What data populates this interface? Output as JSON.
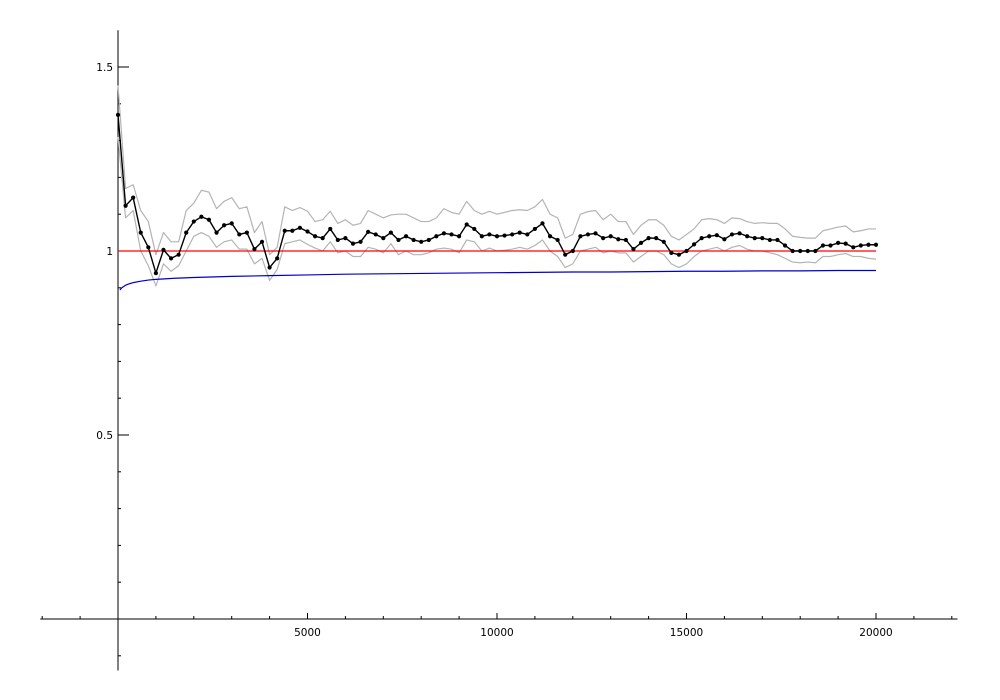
{
  "chart_data": {
    "type": "line",
    "title": "",
    "xlabel": "",
    "ylabel": "",
    "xlim": [
      -2050,
      22150
    ],
    "ylim": [
      -0.14,
      1.6
    ],
    "grid": false,
    "legend": "none",
    "x_ticks": [
      {
        "value": 5000,
        "label": "5000"
      },
      {
        "value": 10000,
        "label": "10000"
      },
      {
        "value": 15000,
        "label": "15000"
      },
      {
        "value": 20000,
        "label": "20000"
      }
    ],
    "x_minor_ticks": [
      -2000,
      -1000,
      1000,
      2000,
      3000,
      4000,
      6000,
      7000,
      8000,
      9000,
      11000,
      12000,
      13000,
      14000,
      16000,
      17000,
      18000,
      19000,
      21000,
      22000
    ],
    "y_ticks": [
      {
        "value": 0.5,
        "label": "0.5"
      },
      {
        "value": 1,
        "label": "1"
      },
      {
        "value": 1.5,
        "label": "1.5"
      }
    ],
    "y_minor_ticks": [
      -0.1,
      0.1,
      0.2,
      0.3,
      0.4,
      0.6,
      0.7,
      0.8,
      0.9,
      1.1,
      1.2,
      1.3,
      1.4
    ],
    "series": [
      {
        "role": "mean",
        "color": "#000000",
        "markers": true,
        "x": [
          0,
          200,
          400,
          600,
          800,
          1000,
          1200,
          1400,
          1600,
          1800,
          2000,
          2200,
          2400,
          2600,
          2800,
          3000,
          3200,
          3400,
          3600,
          3800,
          4000,
          4200,
          4400,
          4600,
          4800,
          5000,
          5200,
          5400,
          5600,
          5800,
          6000,
          6200,
          6400,
          6600,
          6800,
          7000,
          7200,
          7400,
          7600,
          7800,
          8000,
          8200,
          8400,
          8600,
          8800,
          9000,
          9200,
          9400,
          9600,
          9800,
          10000,
          10200,
          10400,
          10600,
          10800,
          11000,
          11200,
          11400,
          11600,
          11800,
          12000,
          12200,
          12400,
          12600,
          12800,
          13000,
          13200,
          13400,
          13600,
          13800,
          14000,
          14200,
          14400,
          14600,
          14800,
          15000,
          15200,
          15400,
          15600,
          15800,
          16000,
          16200,
          16400,
          16600,
          16800,
          17000,
          17200,
          17400,
          17600,
          17800,
          18000,
          18200,
          18400,
          18600,
          18800,
          19000,
          19200,
          19400,
          19600,
          19800,
          20000
        ],
        "y": [
          1.37,
          1.123,
          1.145,
          1.05,
          1.01,
          0.94,
          1.003,
          0.98,
          0.99,
          1.05,
          1.08,
          1.093,
          1.085,
          1.05,
          1.07,
          1.075,
          1.045,
          1.05,
          1.005,
          1.025,
          0.955,
          0.98,
          1.055,
          1.055,
          1.063,
          1.053,
          1.04,
          1.035,
          1.06,
          1.03,
          1.035,
          1.02,
          1.025,
          1.052,
          1.045,
          1.035,
          1.05,
          1.03,
          1.04,
          1.03,
          1.025,
          1.03,
          1.04,
          1.048,
          1.045,
          1.04,
          1.072,
          1.06,
          1.04,
          1.045,
          1.04,
          1.042,
          1.045,
          1.05,
          1.045,
          1.06,
          1.075,
          1.04,
          1.03,
          0.99,
          1.0,
          1.04,
          1.045,
          1.048,
          1.035,
          1.04,
          1.032,
          1.03,
          1.005,
          1.022,
          1.035,
          1.035,
          1.025,
          0.995,
          0.99,
          1.0,
          1.018,
          1.035,
          1.04,
          1.043,
          1.032,
          1.045,
          1.048,
          1.04,
          1.035,
          1.035,
          1.03,
          1.03,
          1.015,
          1.0,
          1.0,
          1.0,
          1.0,
          1.015,
          1.015,
          1.022,
          1.02,
          1.01,
          1.015,
          1.017,
          1.017
        ]
      },
      {
        "role": "upper-band",
        "color": "#b4b4b4",
        "markers": false,
        "x": [
          0,
          200,
          400,
          600,
          800,
          1000,
          1200,
          1400,
          1600,
          1800,
          2000,
          2200,
          2400,
          2600,
          2800,
          3000,
          3200,
          3400,
          3600,
          3800,
          4000,
          4200,
          4400,
          4600,
          4800,
          5000,
          5200,
          5400,
          5600,
          5800,
          6000,
          6200,
          6400,
          6600,
          6800,
          7000,
          7200,
          7400,
          7600,
          7800,
          8000,
          8200,
          8400,
          8600,
          8800,
          9000,
          9200,
          9400,
          9600,
          9800,
          10000,
          10200,
          10400,
          10600,
          10800,
          11000,
          11200,
          11400,
          11600,
          11800,
          12000,
          12200,
          12400,
          12600,
          12800,
          13000,
          13200,
          13400,
          13600,
          13800,
          14000,
          14200,
          14400,
          14600,
          14800,
          15000,
          15200,
          15400,
          15600,
          15800,
          16000,
          16200,
          16400,
          16600,
          16800,
          17000,
          17200,
          17400,
          17600,
          17800,
          18000,
          18200,
          18400,
          18600,
          18800,
          19000,
          19200,
          19400,
          19600,
          19800,
          20000
        ],
        "y": [
          1.45,
          1.17,
          1.18,
          1.11,
          1.08,
          0.99,
          1.05,
          1.025,
          1.025,
          1.11,
          1.13,
          1.165,
          1.16,
          1.115,
          1.135,
          1.145,
          1.115,
          1.12,
          1.05,
          1.08,
          0.99,
          1.01,
          1.12,
          1.11,
          1.118,
          1.108,
          1.08,
          1.085,
          1.108,
          1.075,
          1.085,
          1.07,
          1.075,
          1.11,
          1.1,
          1.09,
          1.098,
          1.1,
          1.1,
          1.09,
          1.08,
          1.08,
          1.09,
          1.115,
          1.105,
          1.1,
          1.135,
          1.11,
          1.1,
          1.108,
          1.1,
          1.105,
          1.11,
          1.112,
          1.11,
          1.12,
          1.14,
          1.1,
          1.09,
          1.035,
          1.045,
          1.1,
          1.107,
          1.11,
          1.085,
          1.1,
          1.08,
          1.08,
          1.045,
          1.07,
          1.085,
          1.085,
          1.07,
          1.04,
          1.03,
          1.045,
          1.06,
          1.085,
          1.088,
          1.085,
          1.075,
          1.09,
          1.088,
          1.08,
          1.075,
          1.077,
          1.075,
          1.075,
          1.06,
          1.04,
          1.037,
          1.035,
          1.035,
          1.055,
          1.06,
          1.065,
          1.068,
          1.052,
          1.055,
          1.06,
          1.06
        ]
      },
      {
        "role": "lower-band",
        "color": "#b4b4b4",
        "markers": false,
        "x": [
          0,
          200,
          400,
          600,
          800,
          1000,
          1200,
          1400,
          1600,
          1800,
          2000,
          2200,
          2400,
          2600,
          2800,
          3000,
          3200,
          3400,
          3600,
          3800,
          4000,
          4200,
          4400,
          4600,
          4800,
          5000,
          5200,
          5400,
          5600,
          5800,
          6000,
          6200,
          6400,
          6600,
          6800,
          7000,
          7200,
          7400,
          7600,
          7800,
          8000,
          8200,
          8400,
          8600,
          8800,
          9000,
          9200,
          9400,
          9600,
          9800,
          10000,
          10200,
          10400,
          10600,
          10800,
          11000,
          11200,
          11400,
          11600,
          11800,
          12000,
          12200,
          12400,
          12600,
          12800,
          13000,
          13200,
          13400,
          13600,
          13800,
          14000,
          14200,
          14400,
          14600,
          14800,
          15000,
          15200,
          15400,
          15600,
          15800,
          16000,
          16200,
          16400,
          16600,
          16800,
          17000,
          17200,
          17400,
          17600,
          17800,
          18000,
          18200,
          18400,
          18600,
          18800,
          19000,
          19200,
          19400,
          19600,
          19800,
          20000
        ],
        "y": [
          1.31,
          1.09,
          1.11,
          1.0,
          0.96,
          0.905,
          0.965,
          0.945,
          0.96,
          1.0,
          1.04,
          1.05,
          1.04,
          1.01,
          1.025,
          1.03,
          1.005,
          1.005,
          0.965,
          0.98,
          0.92,
          0.95,
          1.02,
          1.025,
          1.03,
          1.018,
          1.008,
          1.0,
          1.025,
          0.995,
          1.0,
          0.985,
          0.985,
          1.01,
          1.005,
          0.995,
          1.02,
          0.99,
          1.0,
          0.99,
          0.99,
          0.995,
          1.005,
          1.008,
          1.005,
          0.995,
          1.03,
          1.025,
          1.0,
          1.008,
          1.0,
          1.002,
          1.005,
          1.01,
          1.005,
          1.015,
          1.03,
          1.0,
          0.985,
          0.955,
          0.965,
          1.0,
          1.005,
          1.01,
          0.995,
          1.0,
          0.995,
          0.995,
          0.97,
          0.985,
          1.0,
          1.0,
          0.99,
          0.965,
          0.955,
          0.965,
          0.985,
          1.0,
          1.005,
          1.01,
          1.0,
          1.01,
          1.015,
          1.005,
          1.0,
          1.0,
          0.995,
          0.99,
          0.98,
          0.97,
          0.968,
          0.97,
          0.968,
          0.985,
          0.985,
          0.99,
          0.993,
          0.985,
          0.985,
          0.98,
          0.978
        ]
      },
      {
        "role": "reference-line",
        "color": "#ff0000",
        "markers": false,
        "x": [
          0,
          20000
        ],
        "y": [
          1.0,
          1.0
        ]
      },
      {
        "role": "fitted-curve",
        "color": "#0000cc",
        "markers": false,
        "x": [
          50,
          100,
          200,
          300,
          400,
          600,
          800,
          1000,
          1500,
          2000,
          3000,
          4000,
          5000,
          6000,
          7000,
          8000,
          9000,
          10000,
          11000,
          12000,
          13000,
          14000,
          15000,
          16000,
          17000,
          18000,
          19000,
          20000
        ],
        "y": [
          0.894,
          0.9,
          0.907,
          0.911,
          0.914,
          0.918,
          0.921,
          0.923,
          0.926,
          0.928,
          0.931,
          0.933,
          0.935,
          0.937,
          0.938,
          0.939,
          0.94,
          0.941,
          0.942,
          0.943,
          0.943,
          0.944,
          0.945,
          0.945,
          0.946,
          0.946,
          0.947,
          0.947
        ]
      }
    ]
  }
}
